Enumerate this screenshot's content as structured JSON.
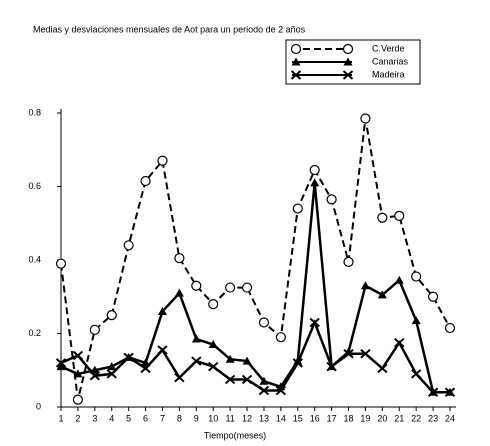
{
  "chart_data": {
    "type": "line",
    "title": "Medias y desviaciones mensuales de Aot para un periodo de 2 años",
    "x_label": "Tiempo(meses)",
    "x": [
      1,
      2,
      3,
      4,
      5,
      6,
      7,
      8,
      9,
      10,
      11,
      12,
      13,
      14,
      15,
      16,
      17,
      18,
      19,
      20,
      21,
      22,
      23,
      24
    ],
    "xlim": [
      1,
      24
    ],
    "xticks": [
      1,
      2,
      3,
      4,
      5,
      6,
      7,
      8,
      9,
      10,
      11,
      12,
      13,
      14,
      15,
      16,
      17,
      18,
      19,
      20,
      21,
      22,
      23,
      24
    ],
    "ylim": [
      0,
      0.8
    ],
    "yticks": [
      0,
      0.2,
      0.4,
      0.6,
      0.8
    ],
    "legend": "upper right",
    "series": [
      {
        "name": "C.Verde",
        "color": "#000000",
        "dashed": true,
        "marker": "circle",
        "values": [
          0.39,
          0.02,
          0.21,
          0.25,
          0.44,
          0.615,
          0.67,
          0.405,
          0.33,
          0.28,
          0.325,
          0.325,
          0.23,
          0.19,
          0.54,
          0.645,
          0.565,
          0.395,
          0.785,
          0.515,
          0.52,
          0.355,
          0.3,
          0.215
        ]
      },
      {
        "name": "Canarias",
        "color": "#000000",
        "dashed": false,
        "marker": "triangle",
        "values": [
          0.11,
          0.09,
          0.1,
          0.11,
          0.135,
          0.12,
          0.26,
          0.31,
          0.185,
          0.17,
          0.13,
          0.125,
          0.07,
          0.055,
          0.125,
          0.61,
          0.11,
          0.15,
          0.33,
          0.305,
          0.345,
          0.235,
          0.04,
          0.04
        ]
      },
      {
        "name": "Madeira",
        "color": "#000000",
        "dashed": false,
        "marker": "x",
        "values": [
          0.12,
          0.14,
          0.085,
          0.09,
          0.135,
          0.105,
          0.155,
          0.08,
          0.125,
          0.11,
          0.075,
          0.075,
          0.045,
          0.045,
          0.12,
          0.23,
          0.11,
          0.145,
          0.145,
          0.105,
          0.175,
          0.09,
          0.04,
          0.04
        ]
      }
    ]
  }
}
